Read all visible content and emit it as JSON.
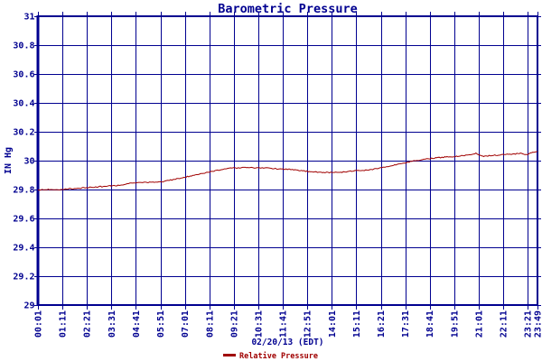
{
  "colors": {
    "grid": "#000090",
    "text": "#000090",
    "line": "#A00000",
    "background": "#ffffff"
  },
  "chart_data": {
    "type": "line",
    "title": "Barometric Pressure",
    "ylabel": "IN Hg",
    "xlabel": "02/20/13 (EDT)",
    "ylim": [
      29,
      31
    ],
    "grid": true,
    "yticks": [
      {
        "value": 31,
        "label": "31"
      },
      {
        "value": 30.8,
        "label": "30.8"
      },
      {
        "value": 30.6,
        "label": "30.6"
      },
      {
        "value": 30.4,
        "label": "30.4"
      },
      {
        "value": 30.2,
        "label": "30.2"
      },
      {
        "value": 30,
        "label": "30"
      },
      {
        "value": 29.8,
        "label": "29.8"
      },
      {
        "value": 29.6,
        "label": "29.6"
      },
      {
        "value": 29.4,
        "label": "29.4"
      },
      {
        "value": 29.2,
        "label": "29.2"
      },
      {
        "value": 29,
        "label": "29"
      }
    ],
    "xticks": [
      "00:01",
      "01:11",
      "02:21",
      "03:31",
      "04:41",
      "05:51",
      "07:01",
      "08:11",
      "09:21",
      "10:31",
      "11:41",
      "12:51",
      "14:01",
      "15:11",
      "16:21",
      "17:31",
      "18:41",
      "19:51",
      "21:01",
      "22:11",
      "23:21",
      "23:49"
    ],
    "x_range": [
      "00:01",
      "23:49"
    ],
    "legend": {
      "position": "bottom",
      "entries": [
        {
          "label": "Relative Pressure",
          "color": "#A00000"
        }
      ]
    },
    "series": [
      {
        "name": "Relative Pressure",
        "color": "#A00000",
        "units": "IN Hg",
        "points": [
          [
            1,
            29.795
          ],
          [
            30,
            29.8
          ],
          [
            60,
            29.8
          ],
          [
            90,
            29.805
          ],
          [
            120,
            29.81
          ],
          [
            150,
            29.815
          ],
          [
            180,
            29.82
          ],
          [
            210,
            29.825
          ],
          [
            240,
            29.83
          ],
          [
            270,
            29.845
          ],
          [
            300,
            29.85
          ],
          [
            330,
            29.85
          ],
          [
            360,
            29.855
          ],
          [
            390,
            29.87
          ],
          [
            420,
            29.885
          ],
          [
            450,
            29.9
          ],
          [
            480,
            29.915
          ],
          [
            510,
            29.93
          ],
          [
            540,
            29.945
          ],
          [
            570,
            29.95
          ],
          [
            600,
            29.952
          ],
          [
            630,
            29.95
          ],
          [
            660,
            29.948
          ],
          [
            690,
            29.942
          ],
          [
            720,
            29.94
          ],
          [
            750,
            29.93
          ],
          [
            780,
            29.925
          ],
          [
            810,
            29.92
          ],
          [
            840,
            29.918
          ],
          [
            870,
            29.92
          ],
          [
            900,
            29.928
          ],
          [
            930,
            29.932
          ],
          [
            960,
            29.94
          ],
          [
            990,
            29.955
          ],
          [
            1020,
            29.97
          ],
          [
            1050,
            29.985
          ],
          [
            1080,
            30.0
          ],
          [
            1110,
            30.01
          ],
          [
            1140,
            30.02
          ],
          [
            1170,
            30.025
          ],
          [
            1200,
            30.03
          ],
          [
            1230,
            30.04
          ],
          [
            1253,
            30.05
          ],
          [
            1275,
            30.03
          ],
          [
            1310,
            30.038
          ],
          [
            1350,
            30.045
          ],
          [
            1380,
            30.05
          ],
          [
            1397,
            30.04
          ],
          [
            1415,
            30.055
          ],
          [
            1429,
            30.065
          ]
        ]
      }
    ]
  }
}
